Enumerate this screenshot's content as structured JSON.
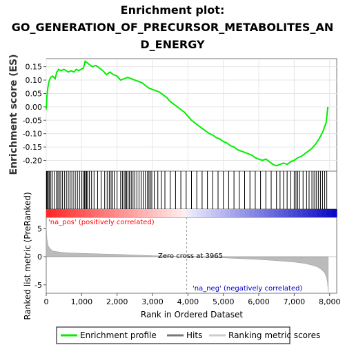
{
  "chart_data": {
    "type": "line",
    "title_lines": [
      "Enrichment plot:",
      "GO_GENERATION_OF_PRECURSOR_METABOLITES_AN",
      "D_ENERGY"
    ],
    "es_panel": {
      "ylabel": "Enrichment score (ES)",
      "ylim": [
        -0.24,
        0.18
      ],
      "yticks": [
        0.15,
        0.1,
        0.05,
        0.0,
        -0.05,
        -0.1,
        -0.15,
        -0.2
      ],
      "ytick_labels": [
        "0.15",
        "0.10",
        "0.05",
        "0.00",
        "-0.05",
        "-0.10",
        "-0.15",
        "-0.20"
      ],
      "series": {
        "name": "Enrichment profile",
        "color": "#00ee00",
        "x": [
          0,
          20,
          50,
          80,
          120,
          180,
          250,
          300,
          350,
          420,
          500,
          560,
          620,
          700,
          780,
          850,
          920,
          980,
          1050,
          1100,
          1150,
          1200,
          1300,
          1400,
          1500,
          1600,
          1700,
          1800,
          1900,
          2000,
          2100,
          2200,
          2300,
          2400,
          2500,
          2600,
          2700,
          2800,
          2900,
          3000,
          3100,
          3200,
          3300,
          3400,
          3500,
          3600,
          3700,
          3800,
          3900,
          4000,
          4100,
          4200,
          4300,
          4400,
          4500,
          4600,
          4700,
          4800,
          4900,
          5000,
          5100,
          5200,
          5300,
          5400,
          5500,
          5600,
          5700,
          5800,
          5900,
          6000,
          6100,
          6200,
          6300,
          6400,
          6500,
          6600,
          6700,
          6800,
          6900,
          7000,
          7100,
          7200,
          7300,
          7400,
          7500,
          7600,
          7700,
          7800,
          7900,
          7950
        ],
        "y": [
          -0.01,
          0.04,
          0.075,
          0.095,
          0.11,
          0.115,
          0.105,
          0.13,
          0.14,
          0.135,
          0.14,
          0.135,
          0.13,
          0.135,
          0.13,
          0.14,
          0.135,
          0.14,
          0.145,
          0.17,
          0.165,
          0.16,
          0.15,
          0.155,
          0.145,
          0.135,
          0.12,
          0.13,
          0.12,
          0.115,
          0.1,
          0.105,
          0.11,
          0.105,
          0.1,
          0.095,
          0.09,
          0.08,
          0.07,
          0.065,
          0.06,
          0.055,
          0.045,
          0.035,
          0.02,
          0.01,
          0.0,
          -0.01,
          -0.02,
          -0.035,
          -0.05,
          -0.06,
          -0.07,
          -0.08,
          -0.09,
          -0.1,
          -0.105,
          -0.115,
          -0.12,
          -0.13,
          -0.135,
          -0.145,
          -0.15,
          -0.16,
          -0.165,
          -0.17,
          -0.175,
          -0.18,
          -0.19,
          -0.195,
          -0.2,
          -0.195,
          -0.205,
          -0.215,
          -0.22,
          -0.215,
          -0.21,
          -0.215,
          -0.205,
          -0.2,
          -0.19,
          -0.185,
          -0.175,
          -0.165,
          -0.155,
          -0.14,
          -0.12,
          -0.095,
          -0.06,
          0.0
        ]
      }
    },
    "hits": {
      "name": "Hits",
      "x": [
        10,
        30,
        60,
        90,
        130,
        170,
        230,
        290,
        330,
        370,
        410,
        460,
        520,
        580,
        640,
        700,
        760,
        820,
        880,
        940,
        1000,
        1040,
        1080,
        1110,
        1140,
        1170,
        1220,
        1280,
        1350,
        1450,
        1550,
        1650,
        1720,
        1780,
        1830,
        1870,
        1920,
        2000,
        2100,
        2150,
        2200,
        2230,
        2270,
        2310,
        2350,
        2400,
        2450,
        2500,
        2560,
        2620,
        2680,
        2740,
        2800,
        2860,
        2900,
        2940,
        2980,
        3050,
        3150,
        3250,
        3350,
        3500,
        3650,
        3800,
        3950,
        4100,
        4250,
        4400,
        4550,
        4700,
        4850,
        5000,
        5150,
        5300,
        5450,
        5600,
        5750,
        5900,
        6050,
        6200,
        6350,
        6500,
        6600,
        6700,
        6800,
        6900,
        7000,
        7050,
        7100,
        7150,
        7250,
        7350,
        7420,
        7500,
        7560,
        7620,
        7680,
        7740,
        7800,
        7860,
        7920
      ]
    },
    "ranking": {
      "name": "Ranking metric scores",
      "ylabel": "Ranked list metric (PreRanked)",
      "ylim": [
        -6.5,
        7.0
      ],
      "yticks": [
        5,
        0,
        -5
      ],
      "ytick_labels": [
        "5",
        "0",
        "-5"
      ],
      "x": [
        0,
        20,
        50,
        100,
        150,
        200,
        300,
        400,
        600,
        800,
        1000,
        1500,
        2000,
        2500,
        3000,
        3500,
        3965,
        4500,
        5000,
        5500,
        6000,
        6500,
        7000,
        7300,
        7500,
        7650,
        7750,
        7850,
        7900,
        7940,
        7960
      ],
      "y": [
        5.5,
        3.2,
        2.0,
        1.5,
        1.2,
        1.0,
        0.9,
        0.8,
        0.7,
        0.65,
        0.6,
        0.5,
        0.42,
        0.3,
        0.18,
        0.08,
        0.0,
        -0.1,
        -0.2,
        -0.35,
        -0.5,
        -0.7,
        -0.95,
        -1.2,
        -1.5,
        -1.8,
        -2.2,
        -2.8,
        -3.4,
        -4.5,
        -6.3
      ]
    },
    "xlabel": "Rank in Ordered Dataset",
    "xlim": [
      0,
      8200
    ],
    "xticks": [
      0,
      1000,
      2000,
      3000,
      4000,
      5000,
      6000,
      7000,
      8000
    ],
    "xtick_labels": [
      "0",
      "1,000",
      "2,000",
      "3,000",
      "4,000",
      "5,000",
      "6,000",
      "7,000",
      "8,000"
    ],
    "zero_cross": 3965,
    "annotations": {
      "zero_cross": "Zero cross at 3965",
      "na_pos": "'na_pos' (positively correlated)",
      "na_neg": "'na_neg' (negatively correlated)"
    },
    "legend": {
      "placement": "bottom",
      "items": [
        "Enrichment profile",
        "Hits",
        "Ranking metric scores"
      ]
    },
    "colors": {
      "es_line": "#00ee00",
      "hits": "#000000",
      "ranking": "#bbbbbb",
      "pos_label": "#ff0000",
      "neg_label": "#0000cc"
    }
  }
}
